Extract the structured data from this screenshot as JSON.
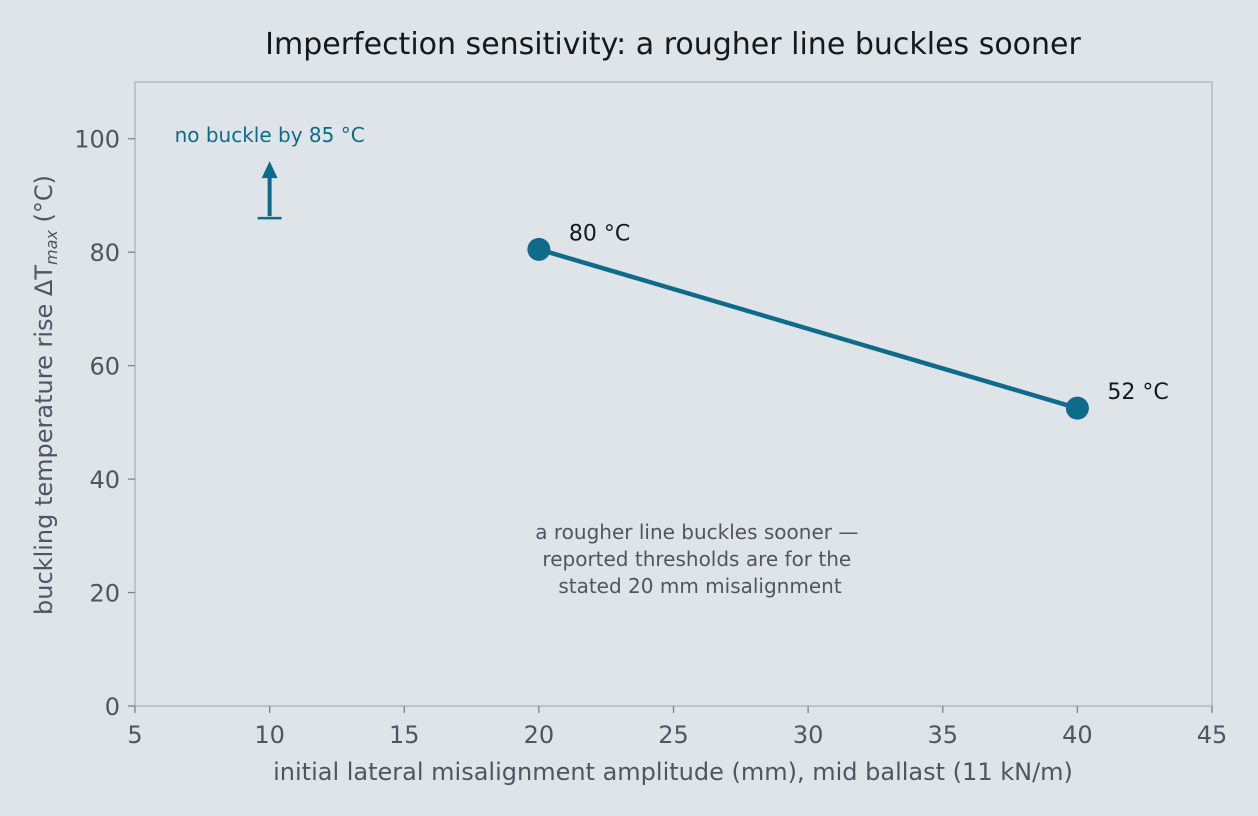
{
  "chart_data": {
    "type": "line",
    "title": "Imperfection sensitivity: a rougher line buckles sooner",
    "xlabel": "initial lateral misalignment amplitude (mm), mid ballast (11 kN/m)",
    "ylabel_prefix": "buckling temperature rise ΔT",
    "ylabel_sub": "max",
    "ylabel_suffix": " (°C)",
    "xlim": [
      5,
      45
    ],
    "ylim": [
      0,
      110
    ],
    "xticks": [
      5,
      10,
      15,
      20,
      25,
      30,
      35,
      40,
      45
    ],
    "yticks": [
      0,
      20,
      40,
      60,
      80,
      100
    ],
    "grid": false,
    "series": [
      {
        "x": [
          20,
          40
        ],
        "y": [
          80.5,
          52.5
        ],
        "labels": [
          "80 °C",
          "52 °C"
        ]
      }
    ],
    "lower_bound_marker": {
      "x": 10,
      "y": 86,
      "label": "no buckle by 85 °C"
    },
    "annotation": [
      "a rougher line buckles sooner —",
      "reported thresholds are for the",
      "stated 20 mm misalignment"
    ],
    "colors": {
      "series": "#0e6b8a",
      "background": "#dfe4e8",
      "axes": "#b3b9bf",
      "text": "#4f5660",
      "title": "#14191f"
    }
  }
}
